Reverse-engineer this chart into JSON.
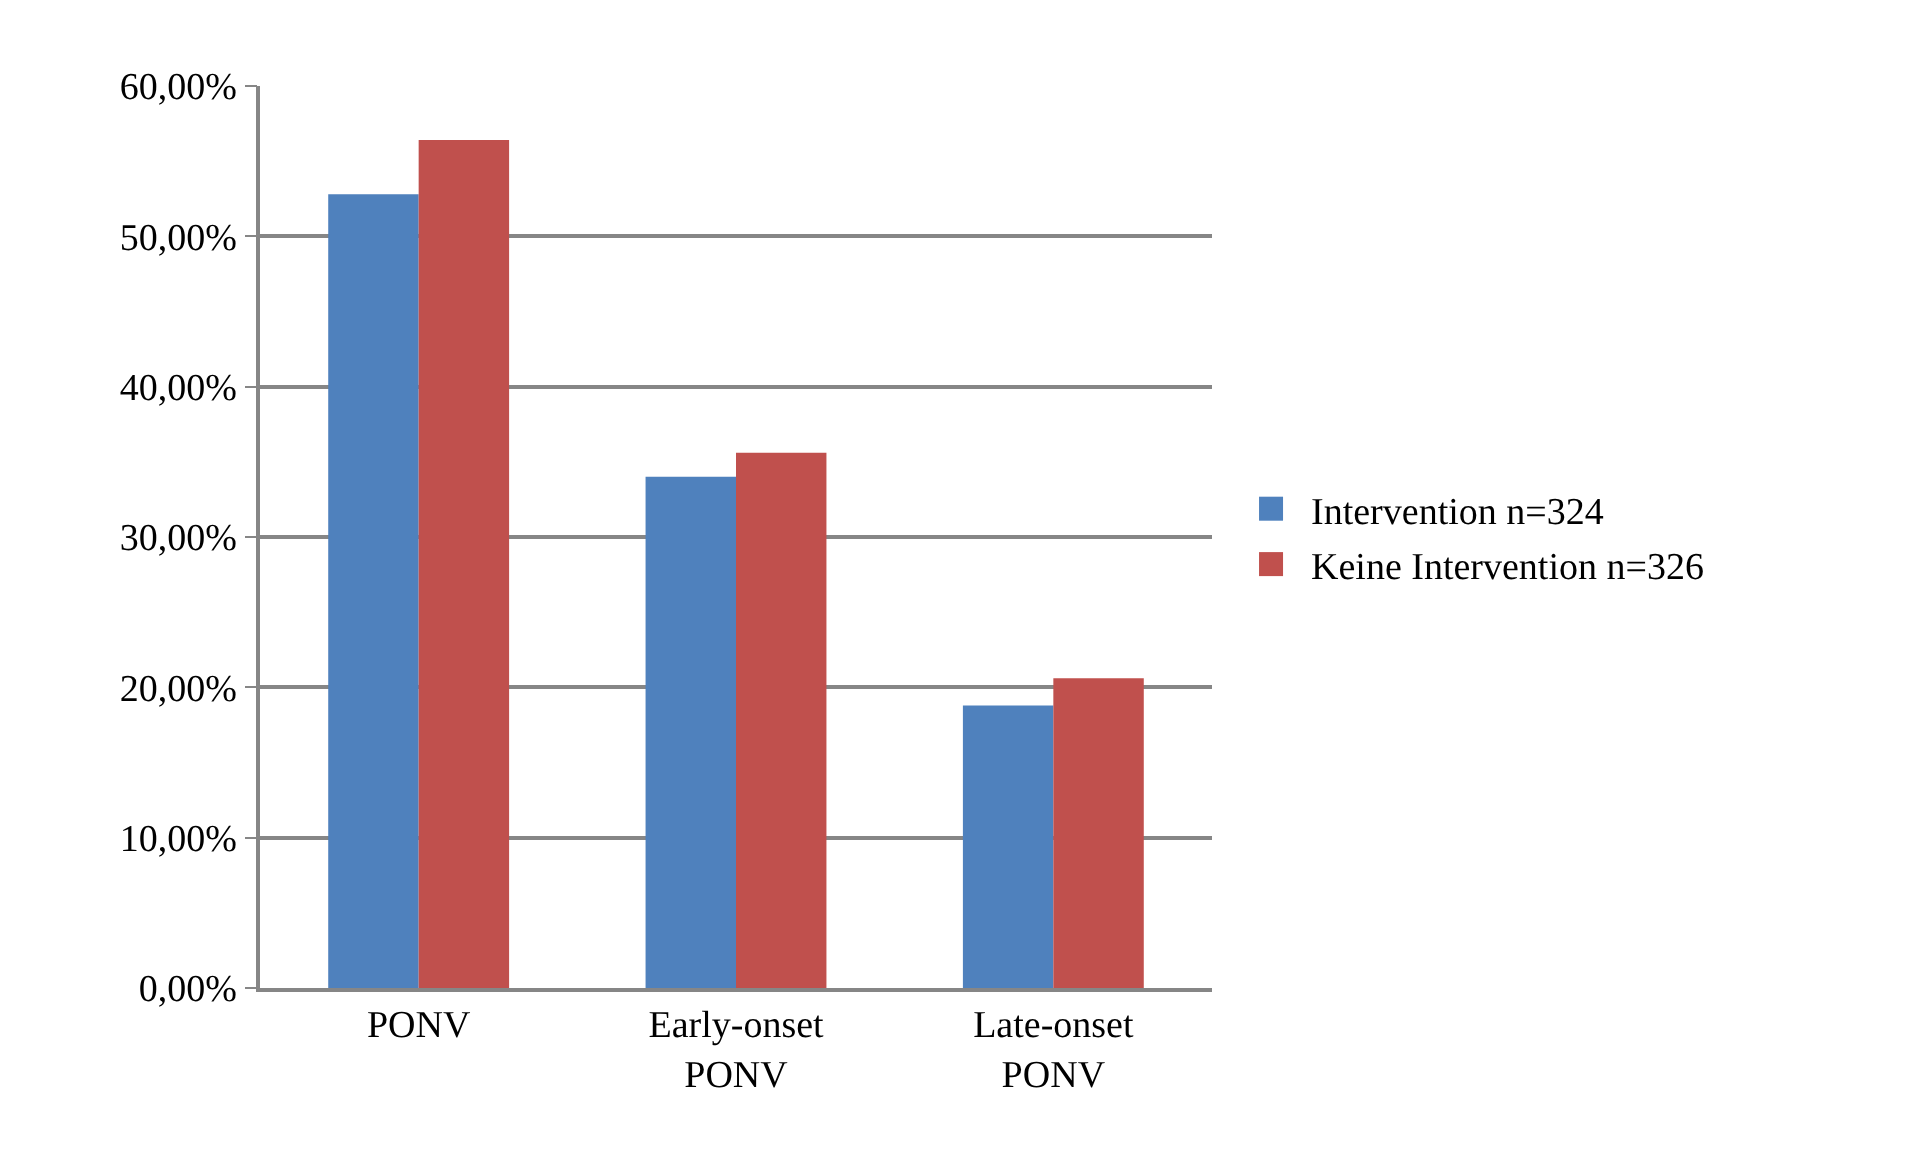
{
  "chart_data": {
    "type": "bar",
    "categories": [
      "PONV",
      "Early-onset PONV",
      "Late-onset PONV"
    ],
    "series": [
      {
        "name": "Intervention n=324",
        "color": "#4f81bd",
        "values": [
          52.8,
          34.0,
          18.8
        ]
      },
      {
        "name": "Keine Intervention n=326",
        "color": "#c0504d",
        "values": [
          56.4,
          35.6,
          20.6
        ]
      }
    ],
    "ylim": [
      0,
      60
    ],
    "yticks": [
      {
        "value": 0,
        "label": "0,00%"
      },
      {
        "value": 10,
        "label": "10,00%"
      },
      {
        "value": 20,
        "label": "20,00%"
      },
      {
        "value": 30,
        "label": "30,00%"
      },
      {
        "value": 40,
        "label": "40,00%"
      },
      {
        "value": 50,
        "label": "50,00%"
      },
      {
        "value": 60,
        "label": "60,00%"
      }
    ],
    "grid": "y",
    "legend": "right"
  }
}
